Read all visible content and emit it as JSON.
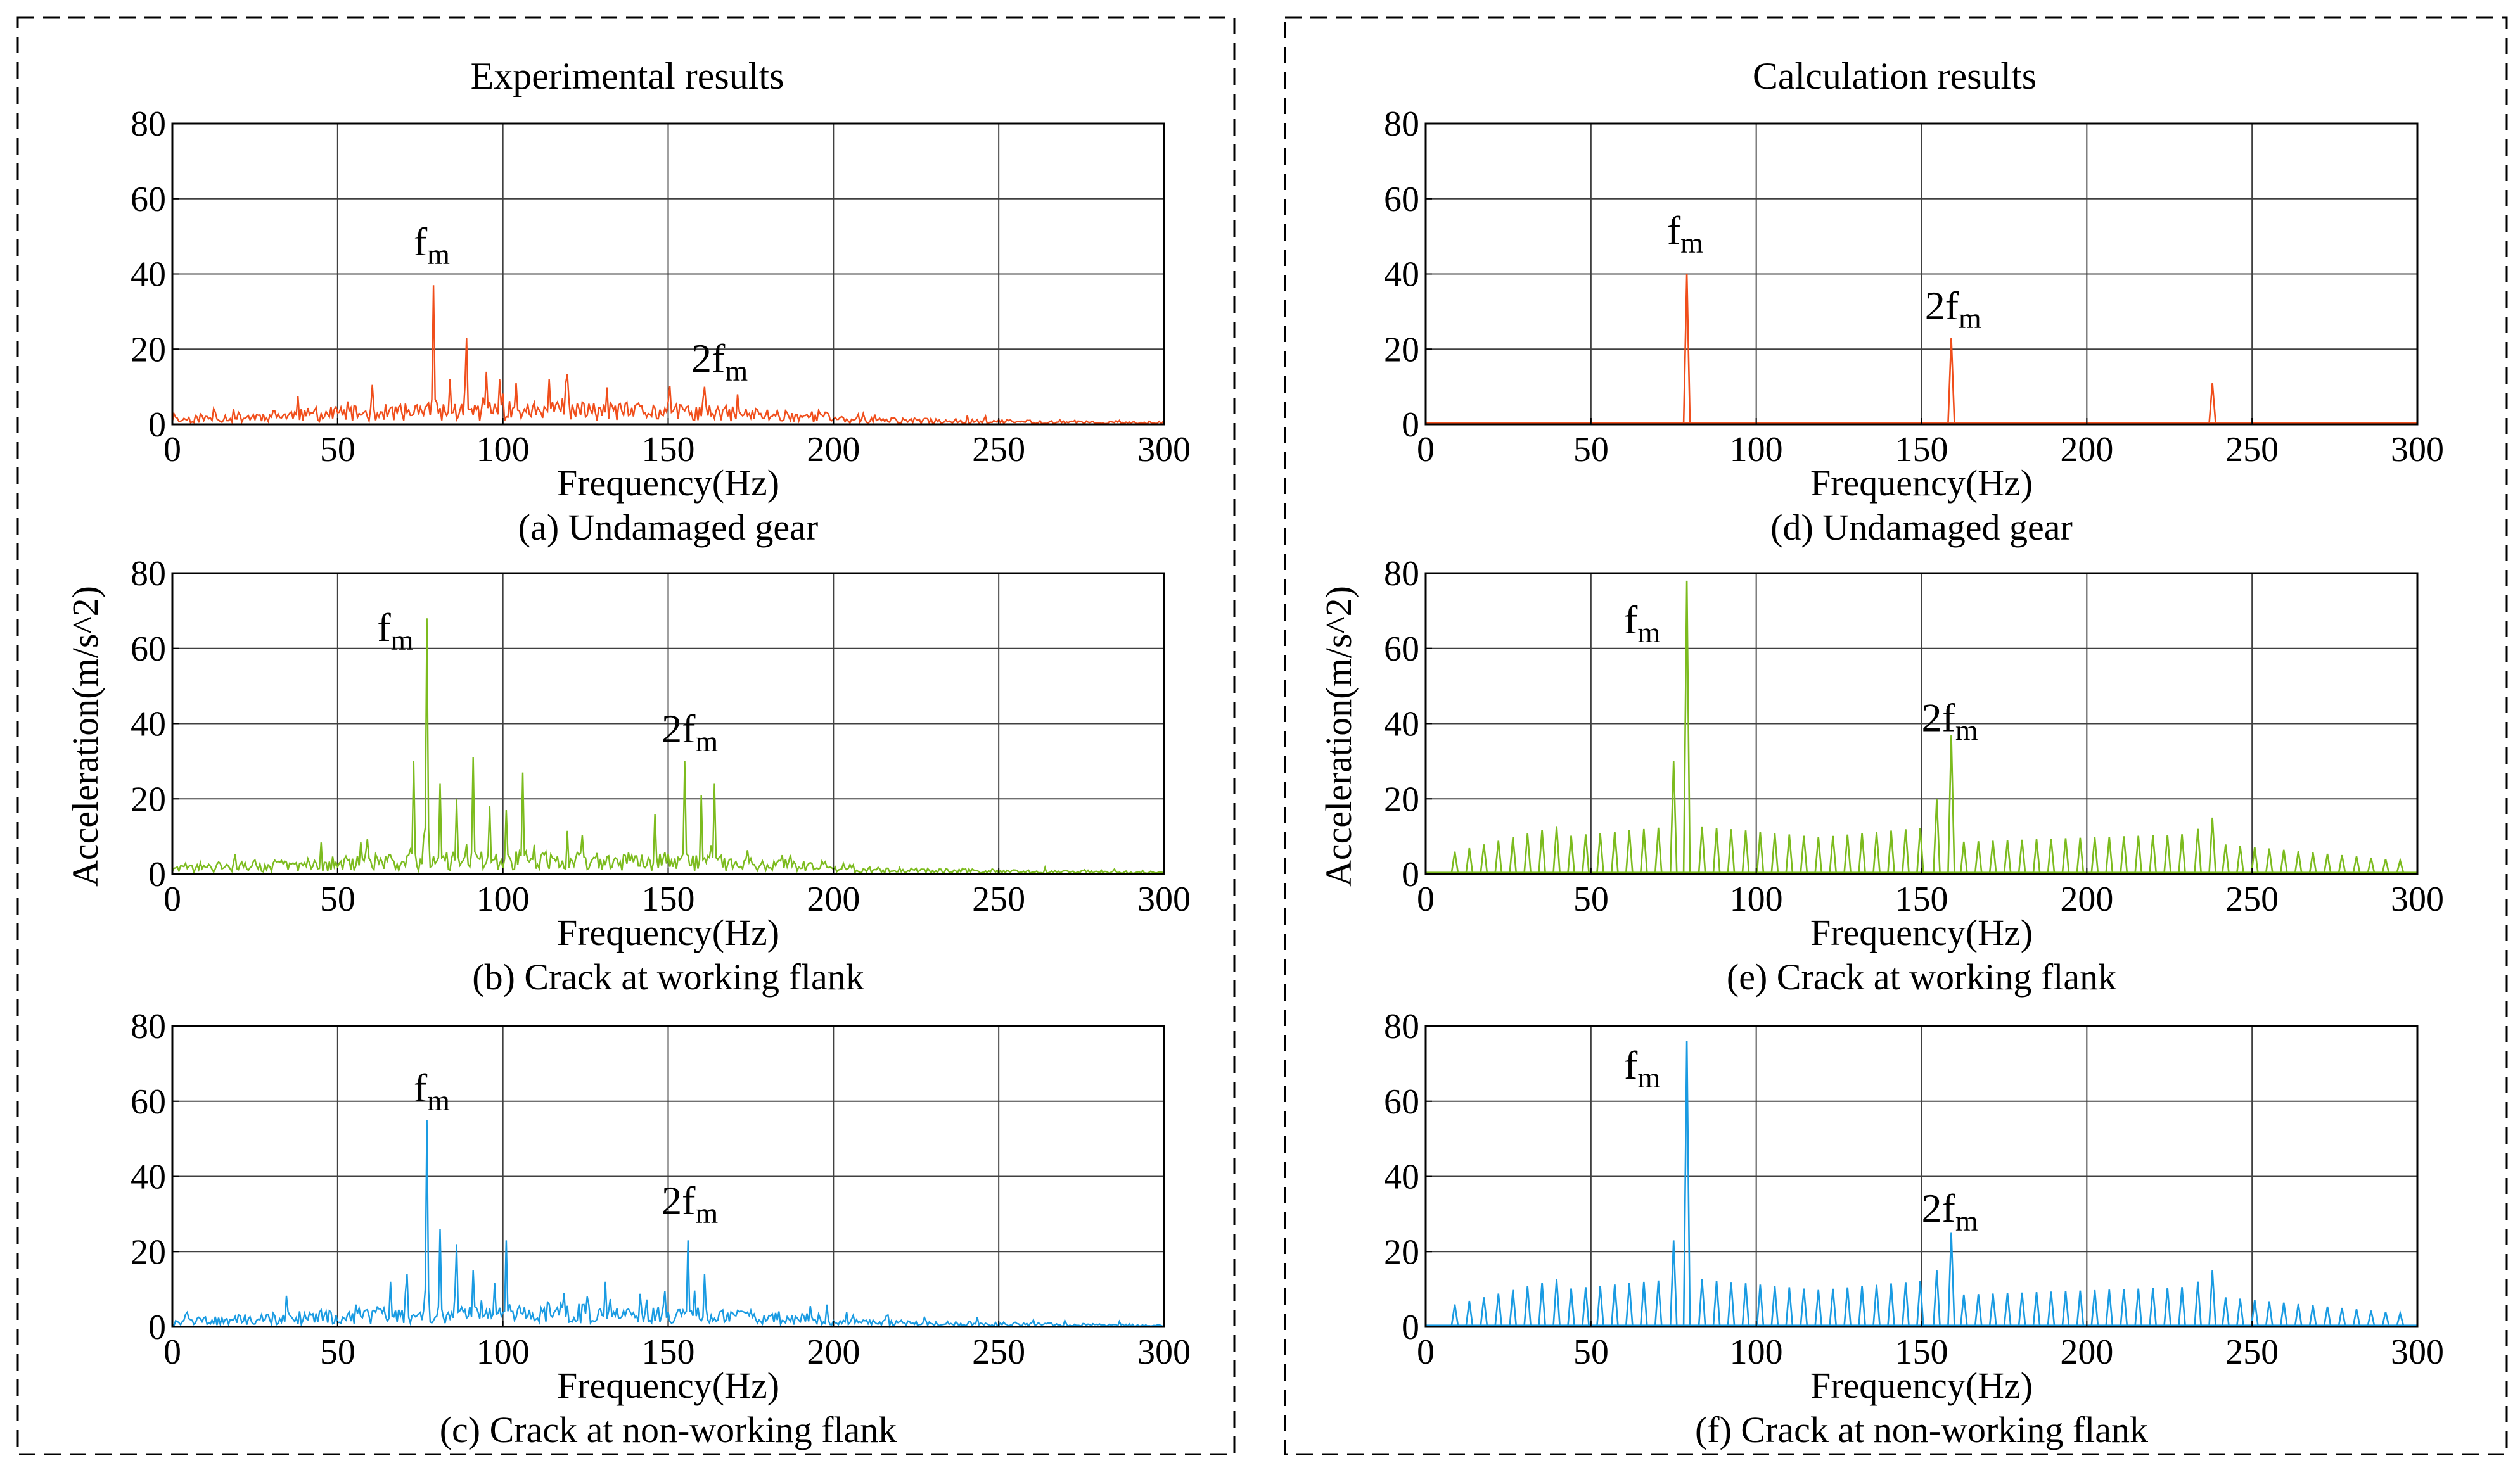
{
  "columns": [
    {
      "id": "left",
      "title": "Experimental results"
    },
    {
      "id": "right",
      "title": "Calculation results"
    }
  ],
  "colors": {
    "undamaged": "#f04e1b",
    "working": "#7cbb1e",
    "nonworking": "#1a9be2",
    "grid": "#404040",
    "frame": "#000000"
  },
  "ylabel": "Acceleration(m/s^2)",
  "chart_data": [
    {
      "id": "a",
      "type": "line",
      "column": "left",
      "row": 0,
      "caption": "(a) Undamaged gear",
      "xlabel": "Frequency(Hz)",
      "ylabel": "",
      "xlim": [
        0,
        300
      ],
      "ylim": [
        0,
        80
      ],
      "xticks": [
        0,
        50,
        100,
        150,
        200,
        250,
        300
      ],
      "yticks": [
        0,
        20,
        40,
        60,
        80
      ],
      "grid": true,
      "color_key": "undamaged",
      "mode": "experimental",
      "peaks": [
        {
          "x": 79,
          "y": 37
        },
        {
          "x": 89,
          "y": 23
        },
        {
          "x": 84,
          "y": 12
        },
        {
          "x": 95,
          "y": 14
        },
        {
          "x": 99,
          "y": 12
        },
        {
          "x": 104,
          "y": 11
        },
        {
          "x": 114,
          "y": 12
        },
        {
          "x": 119,
          "y": 11
        },
        {
          "x": 161,
          "y": 10
        },
        {
          "x": 171,
          "y": 8
        }
      ],
      "annotations": [
        {
          "base": "f",
          "sub": "m",
          "x": 73,
          "y": 45
        },
        {
          "base": "2f",
          "sub": "m",
          "x": 157,
          "y": 14
        }
      ]
    },
    {
      "id": "b",
      "type": "line",
      "column": "left",
      "row": 1,
      "caption": "(b) Crack at working flank",
      "xlabel": "Frequency(Hz)",
      "ylabel": "Acceleration(m/s^2)",
      "xlim": [
        0,
        300
      ],
      "ylim": [
        0,
        80
      ],
      "xticks": [
        0,
        50,
        100,
        150,
        200,
        250,
        300
      ],
      "yticks": [
        0,
        20,
        40,
        60,
        80
      ],
      "grid": true,
      "color_key": "working",
      "mode": "experimental",
      "peaks": [
        {
          "x": 77,
          "y": 68
        },
        {
          "x": 73,
          "y": 30
        },
        {
          "x": 81,
          "y": 24
        },
        {
          "x": 91,
          "y": 31
        },
        {
          "x": 86,
          "y": 20
        },
        {
          "x": 96,
          "y": 18
        },
        {
          "x": 101,
          "y": 17
        },
        {
          "x": 106,
          "y": 27
        },
        {
          "x": 146,
          "y": 16
        },
        {
          "x": 155,
          "y": 30
        },
        {
          "x": 160,
          "y": 21
        },
        {
          "x": 164,
          "y": 24
        }
      ],
      "annotations": [
        {
          "base": "f",
          "sub": "m",
          "x": 62,
          "y": 62
        },
        {
          "base": "2f",
          "sub": "m",
          "x": 148,
          "y": 35
        }
      ]
    },
    {
      "id": "c",
      "type": "line",
      "column": "left",
      "row": 2,
      "caption": "(c) Crack at non-working flank",
      "xlabel": "Frequency(Hz)",
      "ylabel": "",
      "xlim": [
        0,
        300
      ],
      "ylim": [
        0,
        80
      ],
      "xticks": [
        0,
        50,
        100,
        150,
        200,
        250,
        300
      ],
      "yticks": [
        0,
        20,
        40,
        60,
        80
      ],
      "grid": true,
      "color_key": "nonworking",
      "mode": "experimental",
      "peaks": [
        {
          "x": 77,
          "y": 55
        },
        {
          "x": 81,
          "y": 26
        },
        {
          "x": 86,
          "y": 22
        },
        {
          "x": 91,
          "y": 15
        },
        {
          "x": 101,
          "y": 23
        },
        {
          "x": 71,
          "y": 14
        },
        {
          "x": 66,
          "y": 12
        },
        {
          "x": 131,
          "y": 12
        },
        {
          "x": 156,
          "y": 23
        },
        {
          "x": 161,
          "y": 14
        }
      ],
      "annotations": [
        {
          "base": "f",
          "sub": "m",
          "x": 73,
          "y": 60
        },
        {
          "base": "2f",
          "sub": "m",
          "x": 148,
          "y": 30
        }
      ]
    },
    {
      "id": "d",
      "type": "line",
      "column": "right",
      "row": 0,
      "caption": "(d) Undamaged gear",
      "xlabel": "Frequency(Hz)",
      "ylabel": "",
      "xlim": [
        0,
        300
      ],
      "ylim": [
        0,
        80
      ],
      "xticks": [
        0,
        50,
        100,
        150,
        200,
        250,
        300
      ],
      "yticks": [
        0,
        20,
        40,
        60,
        80
      ],
      "grid": true,
      "color_key": "undamaged",
      "mode": "calculated",
      "peaks": [
        {
          "x": 79,
          "y": 40
        },
        {
          "x": 159,
          "y": 23
        },
        {
          "x": 238,
          "y": 11
        }
      ],
      "annotations": [
        {
          "base": "f",
          "sub": "m",
          "x": 73,
          "y": 48
        },
        {
          "base": "2f",
          "sub": "m",
          "x": 151,
          "y": 28
        }
      ]
    },
    {
      "id": "e",
      "type": "line",
      "column": "right",
      "row": 1,
      "caption": "(e) Crack at working flank",
      "xlabel": "Frequency(Hz)",
      "ylabel": "Acceleration(m/s^2)",
      "xlim": [
        0,
        300
      ],
      "ylim": [
        0,
        80
      ],
      "xticks": [
        0,
        50,
        100,
        150,
        200,
        250,
        300
      ],
      "yticks": [
        0,
        20,
        40,
        60,
        80
      ],
      "grid": true,
      "color_key": "working",
      "mode": "calculated",
      "sideband_spacing": 4.4,
      "sideband_range": [
        0,
        296
      ],
      "peaks": [
        {
          "x": 79,
          "y": 78
        },
        {
          "x": 75,
          "y": 30
        },
        {
          "x": 159,
          "y": 37
        },
        {
          "x": 154.6,
          "y": 20
        },
        {
          "x": 238,
          "y": 15
        },
        {
          "x": 233.6,
          "y": 12
        }
      ],
      "annotations": [
        {
          "base": "f",
          "sub": "m",
          "x": 60,
          "y": 64
        },
        {
          "base": "2f",
          "sub": "m",
          "x": 150,
          "y": 38
        }
      ]
    },
    {
      "id": "f",
      "type": "line",
      "column": "right",
      "row": 2,
      "caption": "(f) Crack at non-working flank",
      "xlabel": "Frequency(Hz)",
      "ylabel": "",
      "xlim": [
        0,
        300
      ],
      "ylim": [
        0,
        80
      ],
      "xticks": [
        0,
        50,
        100,
        150,
        200,
        250,
        300
      ],
      "yticks": [
        0,
        20,
        40,
        60,
        80
      ],
      "grid": true,
      "color_key": "nonworking",
      "mode": "calculated",
      "sideband_spacing": 4.4,
      "sideband_range": [
        0,
        296
      ],
      "peaks": [
        {
          "x": 79,
          "y": 76
        },
        {
          "x": 75,
          "y": 23
        },
        {
          "x": 159,
          "y": 25
        },
        {
          "x": 154.6,
          "y": 15
        },
        {
          "x": 238,
          "y": 15
        },
        {
          "x": 233.6,
          "y": 12
        }
      ],
      "annotations": [
        {
          "base": "f",
          "sub": "m",
          "x": 60,
          "y": 66
        },
        {
          "base": "2f",
          "sub": "m",
          "x": 150,
          "y": 28
        }
      ]
    }
  ]
}
